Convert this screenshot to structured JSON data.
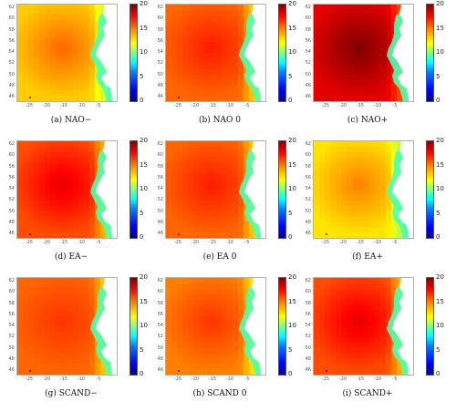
{
  "chart_data": [
    {
      "type": "heatmap",
      "caption": "(a) NAO−",
      "colorbar": {
        "min": 0,
        "max": 20,
        "ticks": [
          "20",
          "15",
          "10",
          "5",
          "0"
        ],
        "colormap": "jet"
      },
      "lat_ticks": [
        "62",
        "60",
        "58",
        "56",
        "54",
        "52",
        "50",
        "48",
        "46"
      ],
      "lon_ticks": [
        "-25",
        "-20",
        "-15",
        "-10",
        "-5"
      ],
      "mean_value": 13.5,
      "max_value": 15.5
    },
    {
      "type": "heatmap",
      "caption": "(b) NAO 0",
      "colorbar": {
        "min": 0,
        "max": 20,
        "ticks": [
          "20",
          "15",
          "10",
          "5",
          "0"
        ],
        "colormap": "jet"
      },
      "lat_ticks": [
        "62",
        "60",
        "58",
        "56",
        "54",
        "52",
        "50",
        "48",
        "46"
      ],
      "lon_ticks": [
        "-25",
        "-20",
        "-15",
        "-10",
        "-5"
      ],
      "mean_value": 15.5,
      "max_value": 17
    },
    {
      "type": "heatmap",
      "caption": "(c) NAO+",
      "colorbar": {
        "min": 0,
        "max": 20,
        "ticks": [
          "20",
          "15",
          "10",
          "5",
          "0"
        ],
        "colormap": "jet"
      },
      "lat_ticks": [
        "62",
        "60",
        "58",
        "56",
        "54",
        "52",
        "50",
        "48",
        "46"
      ],
      "lon_ticks": [
        "-25",
        "-20",
        "-15",
        "-10",
        "-5"
      ],
      "mean_value": 18,
      "max_value": 20
    },
    {
      "type": "heatmap",
      "caption": "(d) EA−",
      "colorbar": {
        "min": 0,
        "max": 20,
        "ticks": [
          "20",
          "15",
          "10",
          "5",
          "0"
        ],
        "colormap": "jet"
      },
      "lat_ticks": [
        "62",
        "60",
        "58",
        "56",
        "54",
        "52",
        "50",
        "48",
        "46"
      ],
      "lon_ticks": [
        "-25",
        "-20",
        "-15",
        "-10",
        "-5"
      ],
      "mean_value": 16,
      "max_value": 18
    },
    {
      "type": "heatmap",
      "caption": "(e) EA 0",
      "colorbar": {
        "min": 0,
        "max": 20,
        "ticks": [
          "20",
          "15",
          "10",
          "5",
          "0"
        ],
        "colormap": "jet"
      },
      "lat_ticks": [
        "62",
        "60",
        "58",
        "56",
        "54",
        "52",
        "50",
        "48",
        "46"
      ],
      "lon_ticks": [
        "-25",
        "-20",
        "-15",
        "-10",
        "-5"
      ],
      "mean_value": 15.5,
      "max_value": 17
    },
    {
      "type": "heatmap",
      "caption": "(f) EA+",
      "colorbar": {
        "min": 0,
        "max": 20,
        "ticks": [
          "20",
          "15",
          "10",
          "5",
          "0"
        ],
        "colormap": "jet"
      },
      "lat_ticks": [
        "62",
        "60",
        "58",
        "56",
        "54",
        "52",
        "50",
        "48",
        "46"
      ],
      "lon_ticks": [
        "-25",
        "-20",
        "-15",
        "-10",
        "-5"
      ],
      "mean_value": 13,
      "max_value": 15
    },
    {
      "type": "heatmap",
      "caption": "(g) SCAND−",
      "colorbar": {
        "min": 0,
        "max": 20,
        "ticks": [
          "20",
          "15",
          "10",
          "5",
          "0"
        ],
        "colormap": "jet"
      },
      "lat_ticks": [
        "62",
        "60",
        "58",
        "56",
        "54",
        "52",
        "50",
        "48",
        "46"
      ],
      "lon_ticks": [
        "-25",
        "-20",
        "-15",
        "-10",
        "-5"
      ],
      "mean_value": 15.5,
      "max_value": 16.5
    },
    {
      "type": "heatmap",
      "caption": "(h) SCAND 0",
      "colorbar": {
        "min": 0,
        "max": 20,
        "ticks": [
          "20",
          "15",
          "10",
          "5",
          "0"
        ],
        "colormap": "jet"
      },
      "lat_ticks": [
        "62",
        "60",
        "58",
        "56",
        "54",
        "52",
        "50",
        "48",
        "46"
      ],
      "lon_ticks": [
        "-25",
        "-20",
        "-15",
        "-10",
        "-5"
      ],
      "mean_value": 15,
      "max_value": 16.5
    },
    {
      "type": "heatmap",
      "caption": "(i) SCAND+",
      "colorbar": {
        "min": 0,
        "max": 20,
        "ticks": [
          "20",
          "15",
          "10",
          "5",
          "0"
        ],
        "colormap": "jet"
      },
      "lat_ticks": [
        "62",
        "60",
        "58",
        "56",
        "54",
        "52",
        "50",
        "48",
        "46"
      ],
      "lon_ticks": [
        "-25",
        "-20",
        "-15",
        "-10",
        "-5"
      ],
      "mean_value": 16,
      "max_value": 18
    }
  ]
}
